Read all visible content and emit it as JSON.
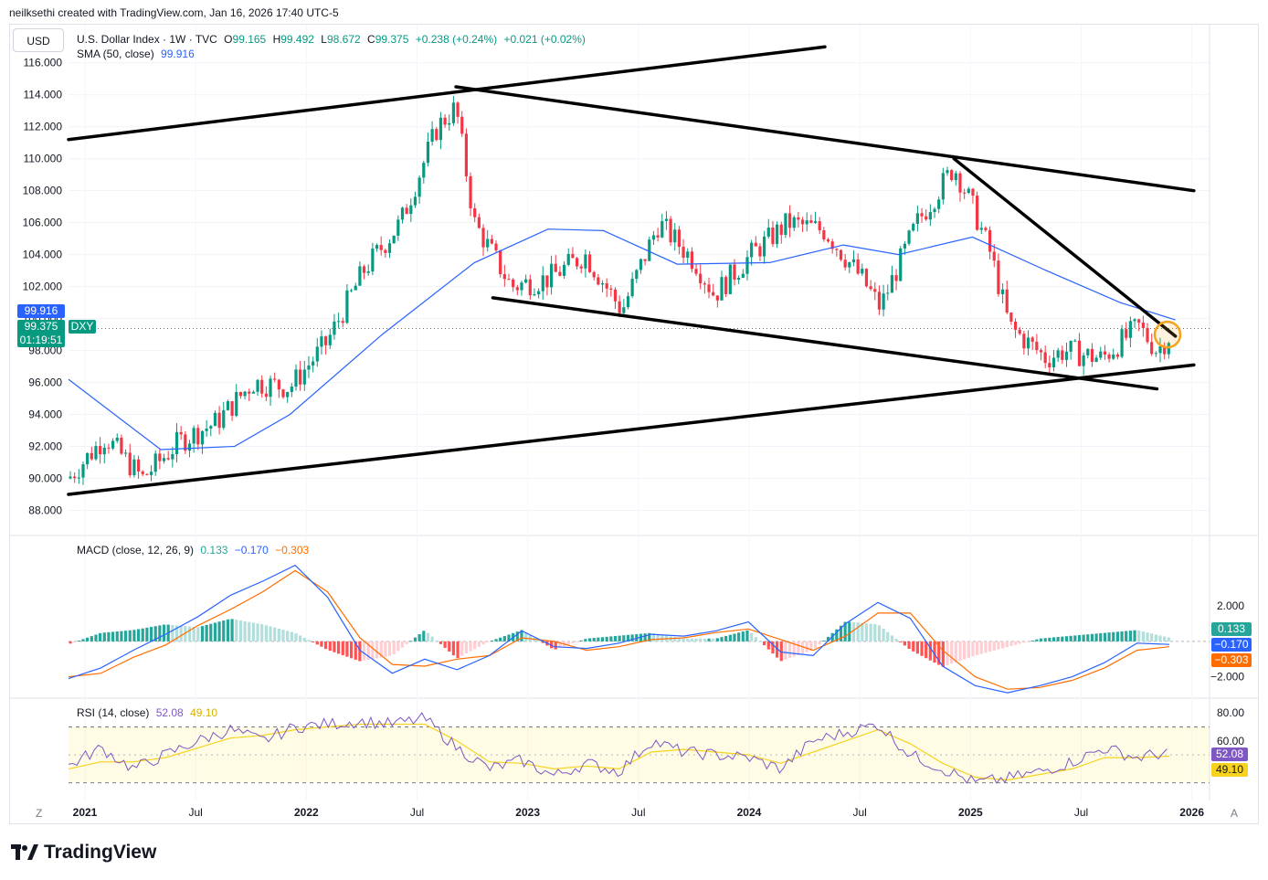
{
  "header": {
    "text": "neilksethi created with TradingView.com, Jan 16, 2026 17:40 UTC-5"
  },
  "currency_button": "USD",
  "legend": {
    "symbol": "U.S. Dollar Index · 1W · TVC",
    "o_label": "O",
    "o": "99.165",
    "h_label": "H",
    "h": "99.492",
    "l_label": "L",
    "l": "98.672",
    "c_label": "C",
    "c": "99.375",
    "change": "+0.238 (+0.24%)",
    "change2": "+0.021 (+0.02%)",
    "sma_label": "SMA (50, close)",
    "sma": "99.916"
  },
  "macd_legend": {
    "label": "MACD (close, 12, 26, 9)",
    "v1": "0.133",
    "v2": "−0.170",
    "v3": "−0.303"
  },
  "rsi_legend": {
    "label": "RSI (14, close)",
    "v1": "52.08",
    "v2": "49.10"
  },
  "price_tags": {
    "sma": "99.916",
    "close": "99.375",
    "symbol": "DXY",
    "countdown": "01:19:51"
  },
  "macd_tags": {
    "hist": "0.133",
    "macd": "−0.170",
    "signal": "−0.303"
  },
  "rsi_tags": {
    "rsi": "52.08",
    "ma": "49.10"
  },
  "footer_left": "Z",
  "footer_right": "A",
  "brand": "TradingView",
  "colors": {
    "up": "#089981",
    "down": "#f23645",
    "sma": "#2962ff",
    "macd": "#2962ff",
    "signal": "#ff6d00",
    "rsi": "#7e57c2",
    "rsi_ma": "#f7d21e",
    "highlight": "#f7a21b"
  },
  "chart_data": {
    "type": "candlestick",
    "title": "U.S. Dollar Index",
    "timeframe": "1W",
    "x_ticks": [
      "2021",
      "Jul",
      "2022",
      "Jul",
      "2023",
      "Jul",
      "2024",
      "Jul",
      "2025",
      "Jul",
      "2026"
    ],
    "price_axis": {
      "ticks": [
        "116.000",
        "114.000",
        "112.000",
        "110.000",
        "108.000",
        "106.000",
        "104.000",
        "102.000",
        "100.000",
        "98.000",
        "96.000",
        "94.000",
        "92.000",
        "90.000",
        "88.000"
      ],
      "range": [
        87,
        116.5
      ]
    },
    "close_series": [
      {
        "date": "2021-01",
        "close": 90.0
      },
      {
        "date": "2021-03",
        "close": 92.6
      },
      {
        "date": "2021-05",
        "close": 90.0
      },
      {
        "date": "2021-07",
        "close": 92.3
      },
      {
        "date": "2021-09",
        "close": 93.5
      },
      {
        "date": "2021-11",
        "close": 96.0
      },
      {
        "date": "2022-01",
        "close": 95.7
      },
      {
        "date": "2022-03",
        "close": 98.5
      },
      {
        "date": "2022-05",
        "close": 103.0
      },
      {
        "date": "2022-07",
        "close": 106.0
      },
      {
        "date": "2022-09",
        "close": 112.0
      },
      {
        "date": "2022-10",
        "close": 113.2
      },
      {
        "date": "2022-11",
        "close": 106.0
      },
      {
        "date": "2023-01",
        "close": 102.0
      },
      {
        "date": "2023-03",
        "close": 102.5
      },
      {
        "date": "2023-05",
        "close": 104.0
      },
      {
        "date": "2023-07",
        "close": 100.5
      },
      {
        "date": "2023-09",
        "close": 106.0
      },
      {
        "date": "2023-11",
        "close": 103.5
      },
      {
        "date": "2023-12",
        "close": 101.5
      },
      {
        "date": "2024-02",
        "close": 104.0
      },
      {
        "date": "2024-04",
        "close": 106.0
      },
      {
        "date": "2024-06",
        "close": 105.5
      },
      {
        "date": "2024-08",
        "close": 102.5
      },
      {
        "date": "2024-09",
        "close": 100.7
      },
      {
        "date": "2024-11",
        "close": 106.0
      },
      {
        "date": "2025-01",
        "close": 109.5
      },
      {
        "date": "2025-02",
        "close": 107.0
      },
      {
        "date": "2025-03",
        "close": 104.0
      },
      {
        "date": "2025-04",
        "close": 99.5
      },
      {
        "date": "2025-06",
        "close": 97.5
      },
      {
        "date": "2025-07",
        "close": 98.0
      },
      {
        "date": "2025-09",
        "close": 97.5
      },
      {
        "date": "2025-11",
        "close": 99.5
      },
      {
        "date": "2025-12",
        "close": 98.0
      },
      {
        "date": "2026-01",
        "close": 99.375
      }
    ],
    "sma50_series": [
      {
        "date": "2021-01",
        "value": 96.2
      },
      {
        "date": "2021-06",
        "value": 91.8
      },
      {
        "date": "2021-10",
        "value": 92.0
      },
      {
        "date": "2022-01",
        "value": 94.0
      },
      {
        "date": "2022-06",
        "value": 99.0
      },
      {
        "date": "2022-11",
        "value": 103.5
      },
      {
        "date": "2023-03",
        "value": 105.6
      },
      {
        "date": "2023-06",
        "value": 105.5
      },
      {
        "date": "2023-10",
        "value": 103.4
      },
      {
        "date": "2024-03",
        "value": 103.5
      },
      {
        "date": "2024-07",
        "value": 104.6
      },
      {
        "date": "2024-10",
        "value": 104.0
      },
      {
        "date": "2025-02",
        "value": 105.1
      },
      {
        "date": "2025-06",
        "value": 103.0
      },
      {
        "date": "2025-10",
        "value": 101.0
      },
      {
        "date": "2026-01",
        "value": 99.916
      }
    ],
    "trendlines_price": [
      {
        "from": {
          "date": "2021-01",
          "price": 111.2
        },
        "to": {
          "date": "2024-06",
          "price": 117.0
        }
      },
      {
        "from": {
          "date": "2022-10",
          "price": 114.5
        },
        "to": {
          "date": "2026-02",
          "price": 108.0
        }
      },
      {
        "from": {
          "date": "2025-01",
          "price": 110.0
        },
        "to": {
          "date": "2026-01",
          "price": 98.9
        }
      },
      {
        "from": {
          "date": "2022-12",
          "price": 101.3
        },
        "to": {
          "date": "2025-12",
          "price": 95.6
        }
      },
      {
        "from": {
          "date": "2021-01",
          "price": 89.0
        },
        "to": {
          "date": "2026-02",
          "price": 97.1
        }
      }
    ],
    "macd": {
      "ticks": [
        "2.000",
        "−2.000"
      ],
      "macd_series": [
        -2.1,
        -1.5,
        -0.5,
        0.4,
        1.4,
        2.6,
        3.4,
        4.3,
        2.5,
        -0.5,
        -1.8,
        -1.0,
        -1.6,
        -0.8,
        0.6,
        -0.3,
        -0.4,
        -0.1,
        0.4,
        0.3,
        0.6,
        1.1,
        -0.6,
        -0.8,
        1.0,
        2.2,
        1.3,
        -1.4,
        -2.5,
        -2.9,
        -2.5,
        -2.0,
        -1.2,
        -0.1,
        -0.17
      ],
      "signal_series": [
        -2.0,
        -1.8,
        -0.9,
        -0.2,
        0.9,
        1.8,
        2.8,
        4.0,
        2.8,
        0.2,
        -1.3,
        -1.4,
        -1.0,
        -0.8,
        0.2,
        0.0,
        -0.5,
        -0.3,
        0.1,
        0.2,
        0.5,
        0.7,
        0.1,
        -0.5,
        0.3,
        1.6,
        1.6,
        -0.5,
        -2.0,
        -2.7,
        -2.6,
        -2.2,
        -1.5,
        -0.5,
        -0.303
      ]
    },
    "rsi": {
      "ticks": [
        "80.00",
        "60.00",
        "52.08",
        "49.10"
      ],
      "bands": [
        70,
        30
      ],
      "rsi_series": [
        42,
        55,
        40,
        50,
        60,
        68,
        60,
        70,
        72,
        74,
        72,
        76,
        55,
        40,
        46,
        35,
        44,
        38,
        60,
        52,
        50,
        48,
        40,
        60,
        66,
        72,
        50,
        40,
        30,
        33,
        38,
        45,
        55,
        48,
        52.08
      ],
      "ma_series": [
        40,
        45,
        45,
        48,
        55,
        62,
        64,
        68,
        70,
        72,
        72,
        72,
        60,
        45,
        44,
        40,
        42,
        40,
        52,
        54,
        52,
        50,
        44,
        52,
        60,
        68,
        58,
        44,
        34,
        32,
        36,
        40,
        48,
        48,
        49.1
      ]
    }
  }
}
